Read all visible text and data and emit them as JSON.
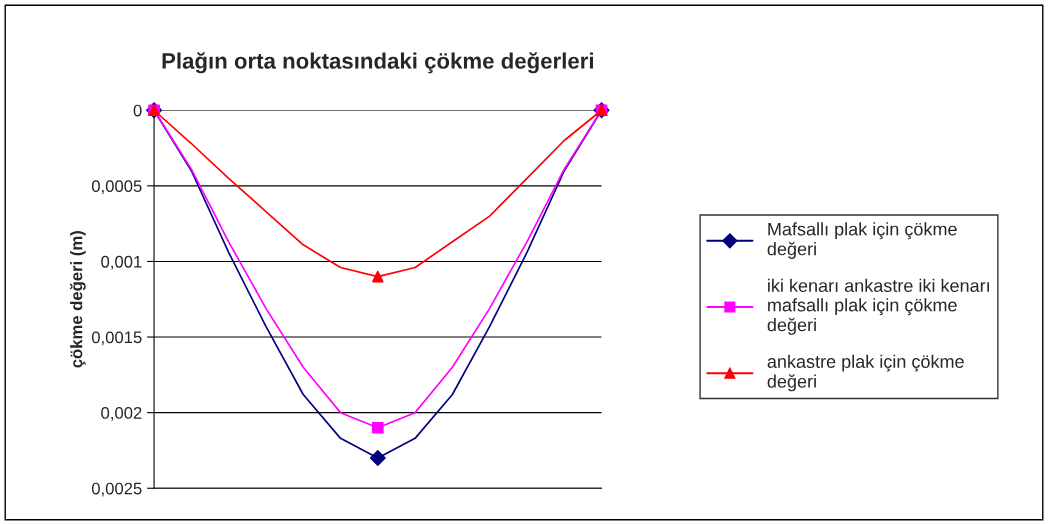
{
  "chart_data": {
    "type": "line",
    "title": "Plağın orta noktasındaki çökme değerleri",
    "ylabel": "çökme değeri (m)",
    "categories": [
      null,
      null,
      null,
      null,
      null,
      null,
      null,
      null,
      null,
      null,
      null,
      null,
      null
    ],
    "series": [
      {
        "name": "Mafsallı plak için çökme\ndeğeri",
        "color": "#000080",
        "values": [
          0,
          0.0004,
          0.00094,
          0.00143,
          0.00188,
          0.00217,
          0.0023,
          0.00217,
          0.00188,
          0.00143,
          0.00094,
          0.0004,
          0
        ]
      },
      {
        "type": "scatter",
        "color": "#000080",
        "marker": "diamond",
        "values": [
          0,
          null,
          null,
          null,
          null,
          null,
          0.0023,
          null,
          null,
          null,
          null,
          null,
          0
        ]
      },
      {
        "name": "iki kenarı ankastre iki kenarı\nmafsallı plak için çökme\ndeğeri",
        "color": "#ff00ff",
        "values": [
          0,
          0.00039,
          0.00087,
          0.00131,
          0.0017,
          0.002,
          0.0021,
          0.002,
          0.0017,
          0.00131,
          0.00087,
          0.00039,
          0
        ]
      },
      {
        "type": "scatter",
        "color": "#ff00ff",
        "marker": "square",
        "values": [
          0,
          null,
          null,
          null,
          null,
          null,
          0.0021,
          null,
          null,
          null,
          null,
          null,
          0
        ]
      },
      {
        "name": "ankastre plak için çökme\ndeğeri",
        "color": "#ff0000",
        "values": [
          0,
          0.00022,
          0.00045,
          0.00067,
          0.00089,
          0.00104,
          0.0011,
          0.00104,
          0.00087,
          0.0007,
          0.00045,
          0.0002,
          0
        ]
      },
      {
        "type": "scatter",
        "color": "#ff0000",
        "marker": "triangle",
        "values": [
          0,
          null,
          null,
          null,
          null,
          null,
          0.0011,
          null,
          null,
          null,
          null,
          null,
          0
        ]
      }
    ],
    "ylim": [
      0.0025,
      0
    ],
    "yticks": [
      {
        "value": 0,
        "label": "0"
      },
      {
        "value": 0.0005,
        "label": "0,0005"
      },
      {
        "value": 0.001,
        "label": "0,001"
      },
      {
        "value": 0.0015,
        "label": "0,0015"
      },
      {
        "value": 0.002,
        "label": "0,002"
      },
      {
        "value": 0.0025,
        "label": "0,0025"
      }
    ],
    "grid": "y",
    "legend": "right",
    "line_style": "solid"
  }
}
